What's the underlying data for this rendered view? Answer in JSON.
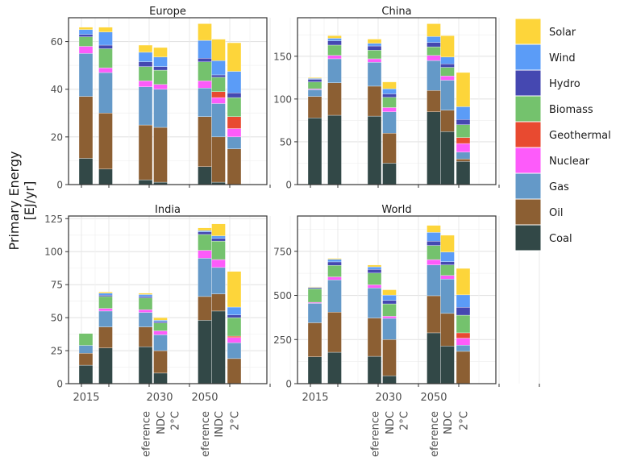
{
  "chart_data": {
    "type": "bar",
    "stacked": true,
    "ylabel_lines": [
      "Primary Energy",
      "[EJ/yr]"
    ],
    "x_tick_labels": [
      "2015",
      "2030",
      "2050"
    ],
    "scenario_labels": [
      "Reference",
      "NDC",
      "2°C"
    ],
    "scenario_labels_india_2050": [
      "Reference",
      "INDC",
      "2°C"
    ],
    "grid": true,
    "legend_position": "right",
    "components": [
      "Coal",
      "Oil",
      "Gas",
      "Nuclear",
      "Geothermal",
      "Biomass",
      "Hydro",
      "Wind",
      "Solar"
    ],
    "legend": [
      {
        "name": "Solar",
        "color": "#FDD53A"
      },
      {
        "name": "Wind",
        "color": "#5B9CF7"
      },
      {
        "name": "Hydro",
        "color": "#4548B1"
      },
      {
        "name": "Biomass",
        "color": "#74C26D"
      },
      {
        "name": "Geothermal",
        "color": "#E84A30"
      },
      {
        "name": "Nuclear",
        "color": "#FD5BFA"
      },
      {
        "name": "Gas",
        "color": "#6499C8"
      },
      {
        "name": "Oil",
        "color": "#8C5F33"
      },
      {
        "name": "Coal",
        "color": "#324847"
      }
    ],
    "panels": [
      {
        "title": "Europe",
        "ylim": [
          0,
          70
        ],
        "yticks": [
          0,
          20,
          40,
          60
        ],
        "bars": [
          {
            "slot": 0,
            "label": "2015",
            "values": [
              11,
              26,
              18,
              3,
              0,
              4,
              1,
              2,
              1
            ]
          },
          {
            "slot": 2,
            "label": "Reference 2030",
            "values": [
              6.5,
              23.5,
              17,
              2,
              0,
              8,
              1.5,
              5.5,
              2
            ]
          },
          {
            "slot": 3,
            "label": "NDC 2030",
            "values": [
              2,
              23,
              16,
              2.5,
              0,
              6,
              2,
              4,
              3
            ]
          },
          {
            "slot": 4,
            "label": "2°C 2030",
            "values": [
              1,
              23,
              16,
              2,
              0,
              6,
              1.5,
              4,
              4
            ]
          },
          {
            "slot": 6,
            "label": "Reference 2050",
            "values": [
              7.5,
              21,
              12,
              3,
              0,
              8,
              1.5,
              7.5,
              7
            ]
          },
          {
            "slot": 7,
            "label": "NDC 2050",
            "values": [
              1,
              19,
              14,
              2.5,
              2.5,
              6,
              1,
              6,
              9
            ]
          },
          {
            "slot": 8,
            "label": "2°C 2050",
            "values": [
              0,
              15,
              5,
              3.5,
              5,
              8,
              2,
              9,
              12
            ]
          }
        ]
      },
      {
        "title": "China",
        "ylim": [
          0,
          195
        ],
        "yticks": [
          0,
          50,
          100,
          150
        ],
        "bars": [
          {
            "slot": 0,
            "label": "2015",
            "values": [
              78,
              25,
              8,
              1,
              0,
              8,
              3,
              1,
              1
            ]
          },
          {
            "slot": 2,
            "label": "Reference 2030",
            "values": [
              81,
              38,
              28,
              4,
              0,
              12,
              5,
              3,
              3
            ]
          },
          {
            "slot": 3,
            "label": "NDC 2030",
            "values": [
              80,
              35,
              28,
              4,
              0,
              10,
              5,
              3,
              5
            ]
          },
          {
            "slot": 4,
            "label": "2°C 2030",
            "values": [
              25,
              35,
              25,
              5,
              0,
              12,
              4,
              6,
              8
            ]
          },
          {
            "slot": 6,
            "label": "Reference 2050",
            "values": [
              85,
              25,
              35,
              6,
              0,
              10,
              5,
              7,
              15
            ]
          },
          {
            "slot": 7,
            "label": "NDC 2050",
            "values": [
              62,
              25,
              35,
              5,
              0,
              10,
              4,
              8,
              25
            ]
          },
          {
            "slot": 8,
            "label": "2°C 2050",
            "values": [
              27,
              3,
              8,
              10,
              7,
              15,
              6,
              15,
              40
            ]
          }
        ]
      },
      {
        "title": "India",
        "ylim": [
          0,
          127
        ],
        "yticks": [
          0,
          25,
          50,
          75,
          100,
          125
        ],
        "bars": [
          {
            "slot": 0,
            "label": "2015",
            "values": [
              14,
              9,
              6,
              0,
              0,
              9,
              0,
              0,
              0
            ]
          },
          {
            "slot": 2,
            "label": "Reference 2030",
            "values": [
              27,
              16,
              12,
              2,
              0,
              9,
              1,
              1.5,
              1
            ]
          },
          {
            "slot": 3,
            "label": "NDC 2030",
            "values": [
              28,
              15,
              11,
              2,
              0,
              9,
              1,
              1.5,
              1
            ]
          },
          {
            "slot": 4,
            "label": "2°C 2030",
            "values": [
              8,
              17,
              12,
              3,
              0,
              6,
              1,
              1,
              2
            ]
          },
          {
            "slot": 6,
            "label": "Reference 2050",
            "values": [
              48,
              18,
              29,
              6,
              0,
              12,
              2,
              1,
              2
            ]
          },
          {
            "slot": 7,
            "label": "INDC 2050",
            "values": [
              55,
              13,
              20,
              6,
              0,
              14,
              2,
              2,
              9
            ]
          },
          {
            "slot": 8,
            "label": "2°C 2050",
            "values": [
              0,
              19,
              12,
              4,
              1,
              14,
              2,
              6,
              27
            ]
          }
        ]
      },
      {
        "title": "World",
        "ylim": [
          0,
          950
        ],
        "yticks": [
          0,
          250,
          500,
          750
        ],
        "bars": [
          {
            "slot": 0,
            "label": "2015",
            "values": [
              152,
              193,
              110,
              6,
              0,
              77,
              6,
              2,
              3
            ]
          },
          {
            "slot": 2,
            "label": "Reference 2030",
            "values": [
              178,
              227,
              183,
              17,
              0,
              65,
              20,
              15,
              5
            ]
          },
          {
            "slot": 3,
            "label": "NDC 2030",
            "values": [
              155,
              217,
              170,
              18,
              0,
              67,
              20,
              15,
              10
            ]
          },
          {
            "slot": 4,
            "label": "2°C 2030",
            "values": [
              45,
              205,
              120,
              12,
              0,
              70,
              20,
              30,
              30
            ]
          },
          {
            "slot": 6,
            "label": "Reference 2050",
            "values": [
              288,
              210,
              175,
              30,
              0,
              80,
              24,
              50,
              40
            ]
          },
          {
            "slot": 7,
            "label": "NDC 2050",
            "values": [
              213,
              185,
              195,
              20,
              0,
              60,
              18,
              55,
              95
            ]
          },
          {
            "slot": 8,
            "label": "2°C 2050",
            "values": [
              0,
              183,
              35,
              40,
              30,
              100,
              45,
              70,
              150
            ]
          }
        ]
      }
    ]
  }
}
